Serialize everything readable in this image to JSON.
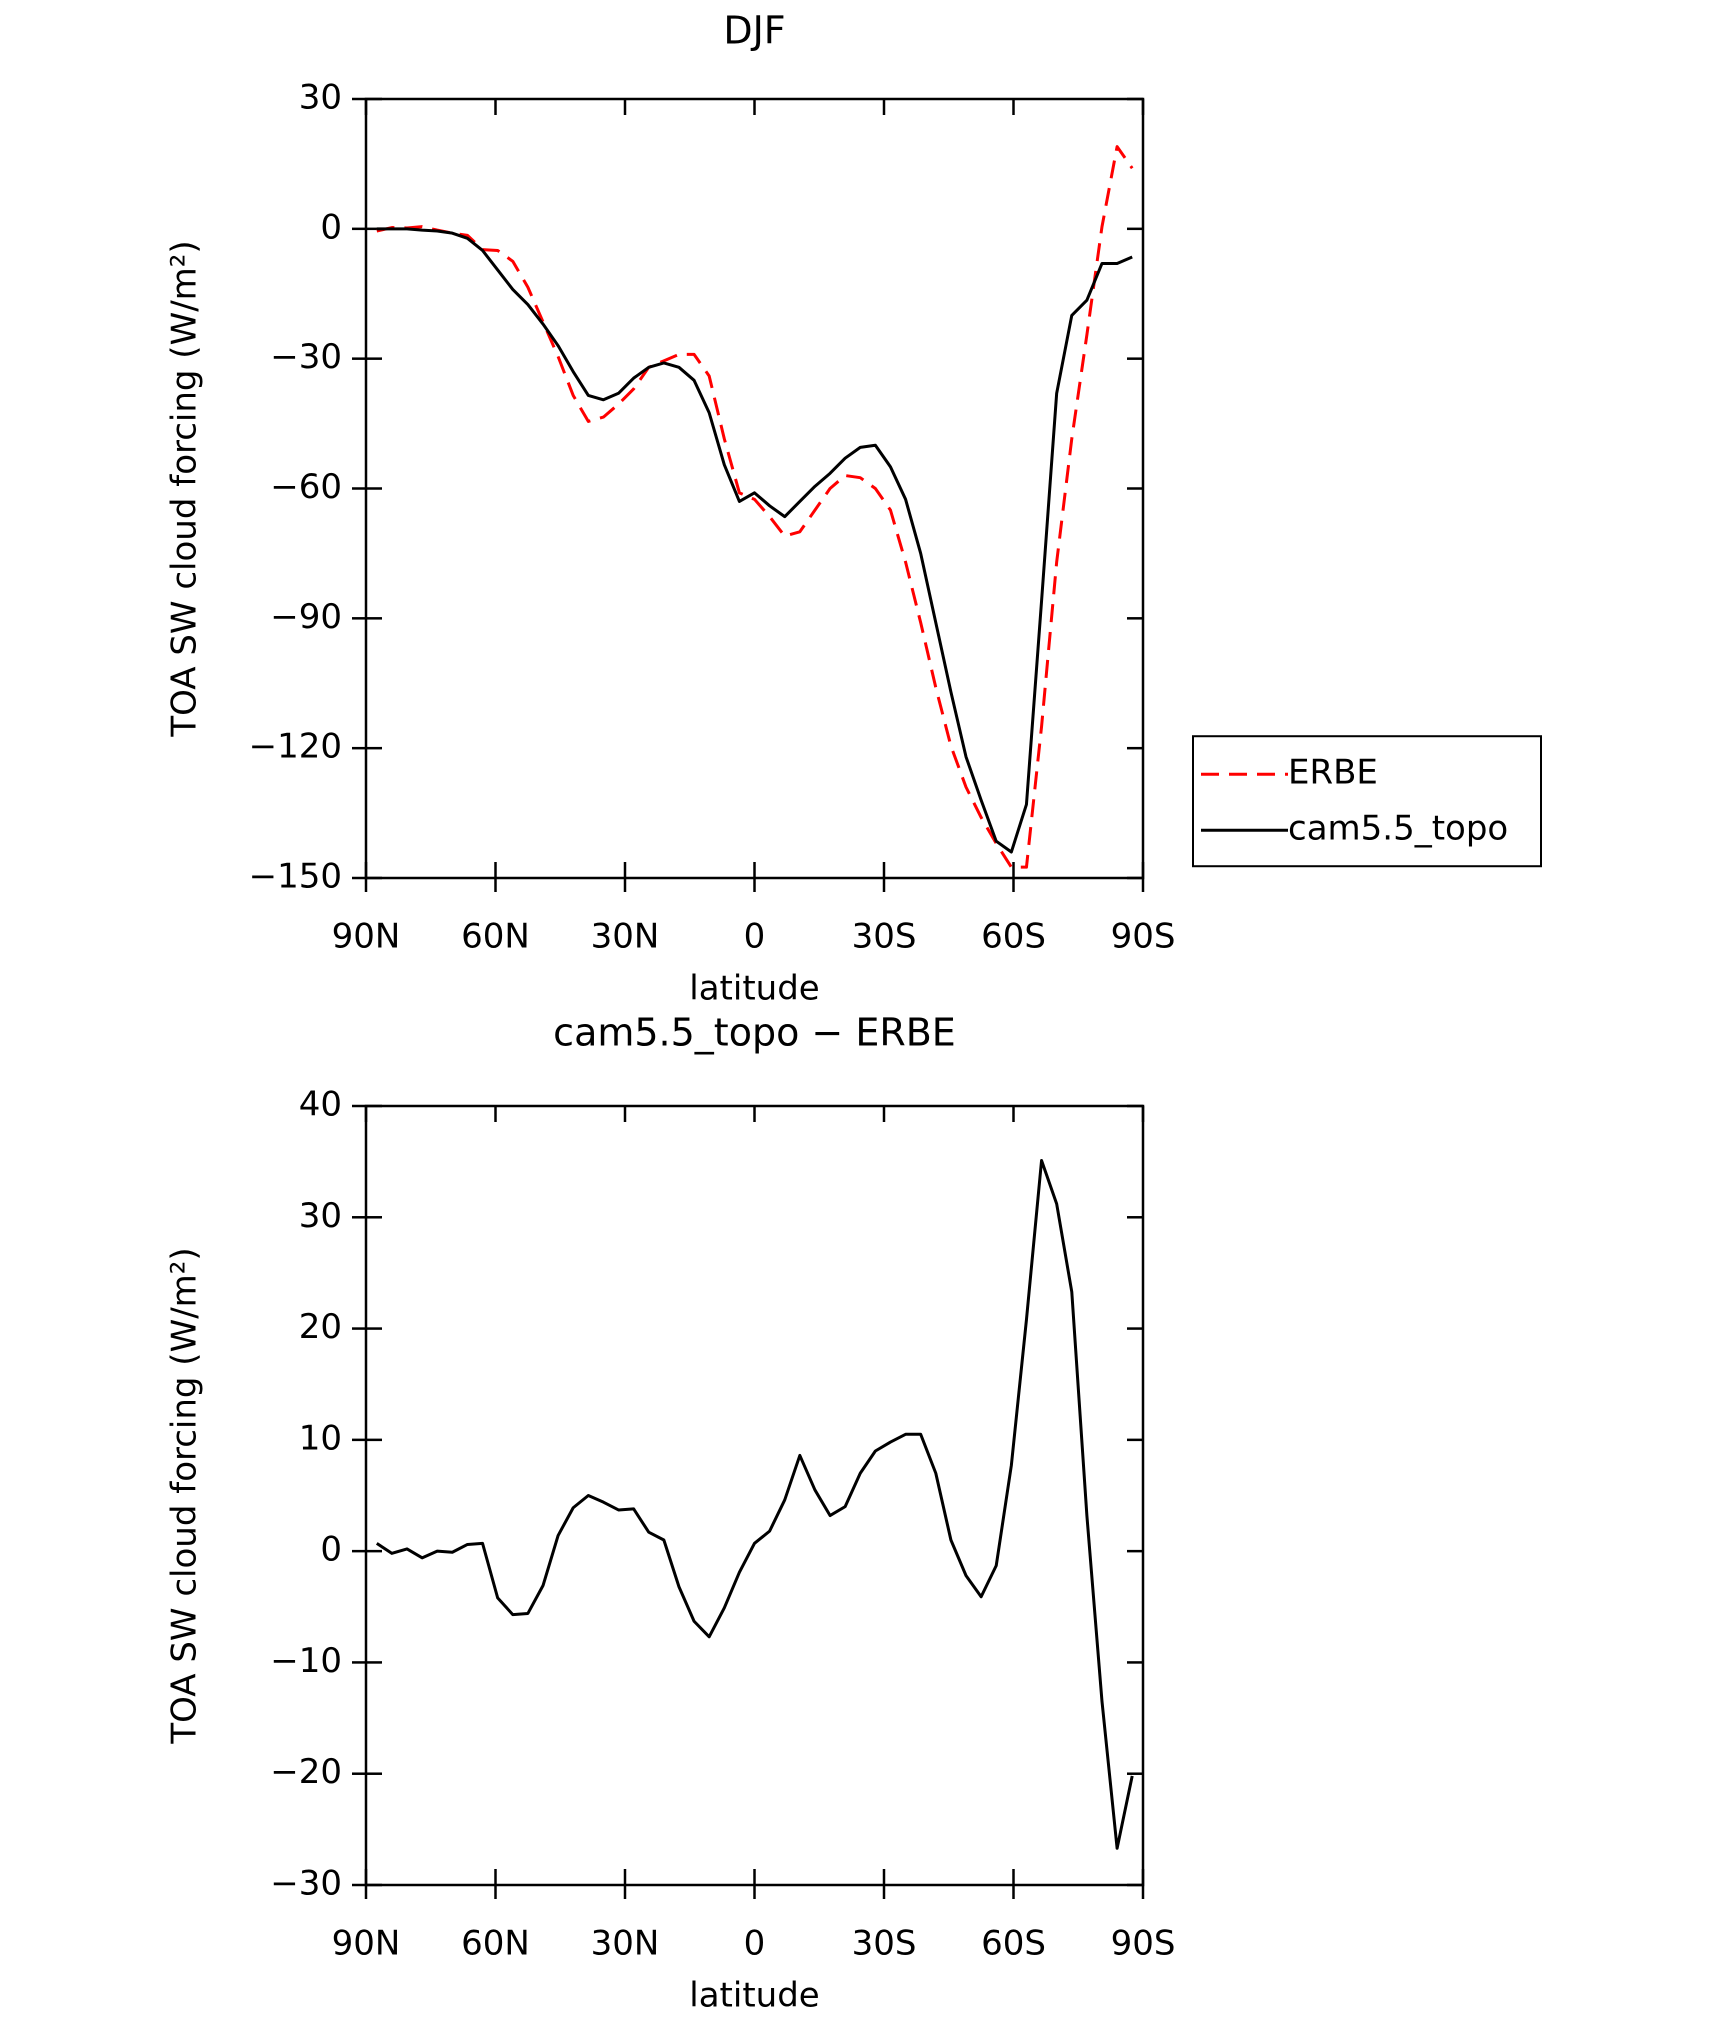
{
  "chart_data": [
    {
      "type": "line",
      "title": "DJF",
      "xlabel": "latitude",
      "ylabel": "TOA SW cloud forcing (W/m²)",
      "x": [
        87.5,
        84,
        80.5,
        77,
        73.5,
        70,
        66.5,
        63,
        59.5,
        56,
        52.5,
        49,
        45.5,
        42,
        38.5,
        35,
        31.5,
        28,
        24.5,
        21,
        17.5,
        14,
        10.5,
        7,
        3.5,
        0,
        -3.5,
        -7,
        -10.5,
        -14,
        -17.5,
        -21,
        -24.5,
        -28,
        -31.5,
        -35,
        -38.5,
        -42,
        -45.5,
        -49,
        -52.5,
        -56,
        -59.5,
        -63,
        -66.5,
        -70,
        -73.5,
        -77,
        -80.5,
        -84,
        -87.5
      ],
      "series": [
        {
          "name": "ERBE",
          "color": "#ff0000",
          "dash": true,
          "values": [
            -0.5,
            0.3,
            0.2,
            0.5,
            -0.3,
            -1,
            -1.5,
            -4.8,
            -5,
            -7.5,
            -13.5,
            -21.5,
            -29.5,
            -38.5,
            -44.5,
            -43.5,
            -40.5,
            -37,
            -32,
            -30.5,
            -29,
            -29,
            -34,
            -48.5,
            -61,
            -62.5,
            -66.5,
            -71,
            -70,
            -65,
            -60,
            -57,
            -57.5,
            -60,
            -65,
            -77,
            -91,
            -106,
            -119.5,
            -129,
            -136,
            -142,
            -147.5,
            -147.5,
            -115,
            -77,
            -48.5,
            -24.5,
            0.5,
            19,
            14
          ]
        },
        {
          "name": "cam5.5_topo",
          "color": "#000000",
          "dash": false,
          "values": [
            0,
            0,
            0,
            -0.3,
            -0.5,
            -1,
            -2.2,
            -5,
            -9.5,
            -14,
            -17.5,
            -22,
            -27,
            -33,
            -38.5,
            -39.5,
            -38,
            -34.5,
            -32,
            -31,
            -32,
            -35,
            -42.5,
            -54.5,
            -63,
            -61,
            -64,
            -66.5,
            -63,
            -59.5,
            -56.5,
            -53,
            -50.5,
            -50,
            -55,
            -62.5,
            -75,
            -91,
            -107,
            -122,
            -132,
            -141.5,
            -144,
            -133,
            -86,
            -38,
            -20,
            -16.5,
            -8,
            -8,
            -6.5
          ]
        }
      ],
      "xlim": [
        90,
        -90
      ],
      "xticks": [
        {
          "value": 90,
          "label": "90N"
        },
        {
          "value": 60,
          "label": "60N"
        },
        {
          "value": 30,
          "label": "30N"
        },
        0,
        {
          "value": -30,
          "label": "30S"
        },
        {
          "value": -60,
          "label": "60S"
        },
        {
          "value": -90,
          "label": "90S"
        }
      ],
      "ylim": [
        -150,
        30
      ],
      "yticks": [
        {
          "value": -150,
          "label": "−150"
        },
        {
          "value": -120,
          "label": "−120"
        },
        {
          "value": -90,
          "label": "−90"
        },
        {
          "value": -60,
          "label": "−60"
        },
        {
          "value": -30,
          "label": "−30"
        },
        0,
        30
      ],
      "legend": "right"
    },
    {
      "type": "line",
      "title": "cam5.5_topo − ERBE",
      "xlabel": "latitude",
      "ylabel": "TOA SW cloud forcing (W/m²)",
      "x": [
        87.5,
        84,
        80.5,
        77,
        73.5,
        70,
        66.5,
        63,
        59.5,
        56,
        52.5,
        49,
        45.5,
        42,
        38.5,
        35,
        31.5,
        28,
        24.5,
        21,
        17.5,
        14,
        10.5,
        7,
        3.5,
        0,
        -3.5,
        -7,
        -10.5,
        -14,
        -17.5,
        -21,
        -24.5,
        -28,
        -31.5,
        -35,
        -38.5,
        -42,
        -45.5,
        -49,
        -52.5,
        -56,
        -59.5,
        -63,
        -66.5,
        -70,
        -73.5,
        -77,
        -80.5,
        -84,
        -87.5
      ],
      "series": [
        {
          "color": "#000000",
          "dash": false,
          "values": [
            0.7,
            -0.2,
            0.2,
            -0.6,
            0,
            -0.1,
            0.6,
            0.7,
            -4.2,
            -5.7,
            -5.6,
            -3.1,
            1.4,
            3.9,
            5,
            4.4,
            3.7,
            3.8,
            1.7,
            1,
            -3.2,
            -6.3,
            -7.7,
            -5.1,
            -1.9,
            0.7,
            1.8,
            4.6,
            8.6,
            5.5,
            3.2,
            4,
            7,
            9,
            9.8,
            10.5,
            10.5,
            7,
            1,
            -2.2,
            -4.1,
            -1.3,
            7.7,
            20.8,
            35.1,
            31.2,
            23.3,
            3.2,
            -13.5,
            -26.7,
            -20.2
          ]
        }
      ],
      "xlim": [
        90,
        -90
      ],
      "xticks": [
        {
          "value": 90,
          "label": "90N"
        },
        {
          "value": 60,
          "label": "60N"
        },
        {
          "value": 30,
          "label": "30N"
        },
        0,
        {
          "value": -30,
          "label": "30S"
        },
        {
          "value": -60,
          "label": "60S"
        },
        {
          "value": -90,
          "label": "90S"
        }
      ],
      "ylim": [
        -30,
        40
      ],
      "yticks": [
        {
          "value": -30,
          "label": "−30"
        },
        {
          "value": -20,
          "label": "−20"
        },
        {
          "value": -10,
          "label": "−10"
        },
        0,
        10,
        20,
        30,
        40
      ]
    }
  ]
}
